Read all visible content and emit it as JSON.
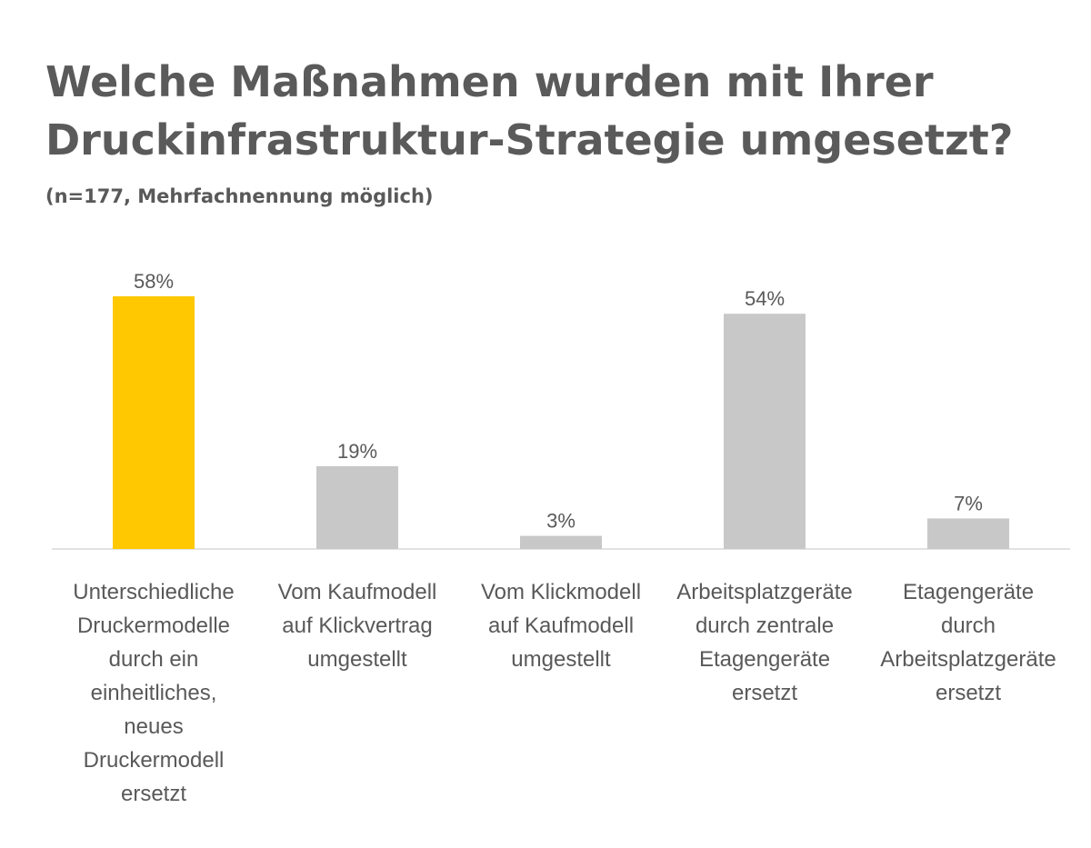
{
  "title_lines": [
    "Welche Maßnahmen wurden mit Ihrer",
    "Druckinfrastruktur-Strategie umgesetzt?"
  ],
  "subtitle": "(n=177, Mehrfachnennung möglich)",
  "colors": {
    "highlight_bar": "#FFC800",
    "default_bar": "#C8C8C8",
    "axis_line": "#D9D9D9",
    "text": "#595959"
  },
  "chart_data": {
    "type": "bar",
    "title": "Welche Maßnahmen wurden mit Ihrer Druckinfrastruktur-Strategie umgesetzt?",
    "subtitle": "(n=177, Mehrfachnennung möglich)",
    "xlabel": "",
    "ylabel": "",
    "ylim": [
      0,
      58
    ],
    "grid": false,
    "legend": "none",
    "highlight_index": 0,
    "categories": [
      [
        "Unterschiedliche",
        "Druckermodelle",
        "durch ein",
        "einheitliches,",
        "neues",
        "Druckermodell",
        "ersetzt"
      ],
      [
        "Vom Kaufmodell",
        "auf Klickvertrag",
        "umgestellt"
      ],
      [
        "Vom Klickmodell",
        "auf Kaufmodell",
        "umgestellt"
      ],
      [
        "Arbeitsplatzgeräte",
        "durch zentrale",
        "Etagengeräte",
        "ersetzt"
      ],
      [
        "Etagengeräte",
        "durch",
        "Arbeitsplatzgeräte",
        "ersetzt"
      ]
    ],
    "values": [
      58,
      19,
      3,
      54,
      7
    ],
    "value_labels": [
      "58%",
      "19%",
      "3%",
      "54%",
      "7%"
    ]
  }
}
